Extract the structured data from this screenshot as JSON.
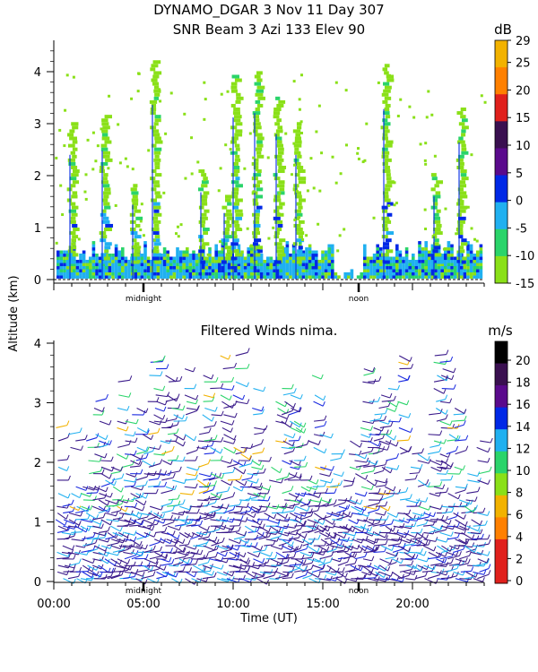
{
  "title_line1": "DYNAMO_DGAR    3 Nov 11 Day 307",
  "title_line2": "SNR Beam 3 Azi 133 Elev 90",
  "ylabel": "Altitude (km)",
  "xlabel": "Time (UT)",
  "chart_data": [
    {
      "type": "heatmap",
      "title": "SNR Beam 3 Azi 133 Elev 90",
      "ylabel": "Altitude (km)",
      "ylim": [
        0,
        4.5
      ],
      "yticks": [
        0,
        1,
        2,
        3,
        4
      ],
      "xlim": [
        0,
        24
      ],
      "x_annotations": [
        {
          "x": 5,
          "label": "midnight"
        },
        {
          "x": 17,
          "label": "noon"
        }
      ],
      "colorbar": {
        "unit": "dB",
        "ticks": [
          29,
          25,
          20,
          15,
          10,
          5,
          0,
          -5,
          -10,
          -15
        ],
        "colors": [
          "#f2b200",
          "#ff8000",
          "#e0201c",
          "#3a1050",
          "#5a0a8c",
          "#0028e6",
          "#20b0f0",
          "#2ad46a",
          "#8ae018"
        ]
      },
      "spikes": [
        {
          "x": 0.9,
          "top": 3.0
        },
        {
          "x": 2.7,
          "top": 3.1
        },
        {
          "x": 4.4,
          "top": 1.8
        },
        {
          "x": 5.5,
          "top": 4.2
        },
        {
          "x": 8.2,
          "top": 2.1
        },
        {
          "x": 9.5,
          "top": 1.6
        },
        {
          "x": 10.0,
          "top": 3.9
        },
        {
          "x": 11.2,
          "top": 4.0
        },
        {
          "x": 12.4,
          "top": 3.5
        },
        {
          "x": 13.5,
          "top": 3.0
        },
        {
          "x": 18.4,
          "top": 4.1
        },
        {
          "x": 21.2,
          "top": 2.0
        },
        {
          "x": 22.6,
          "top": 3.3
        }
      ]
    },
    {
      "type": "scatter",
      "title": "Filtered Winds nima.",
      "ylabel": "Altitude (km)",
      "xlabel": "Time (UT)",
      "ylim": [
        0,
        4.1
      ],
      "yticks": [
        0,
        1,
        2,
        3,
        4
      ],
      "xlim": [
        0,
        24
      ],
      "xticks": [
        "00:00",
        "05:00",
        "10:00",
        "15:00",
        "20:00"
      ],
      "xtick_values": [
        0,
        5,
        10,
        15,
        20
      ],
      "x_annotations": [
        {
          "x": 5,
          "label": "midnight"
        },
        {
          "x": 17,
          "label": "noon"
        }
      ],
      "colorbar": {
        "unit": "m/s",
        "ticks": [
          20,
          18,
          16,
          14,
          12,
          10,
          8,
          6,
          4,
          2,
          0
        ],
        "colors": [
          "#000000",
          "#3a1050",
          "#5a0a8c",
          "#0028e6",
          "#20b0f0",
          "#2ad46a",
          "#8ae018",
          "#f2b200",
          "#ff8000",
          "#e0201c",
          "#e0201c"
        ]
      },
      "wind_barb_colors": [
        "#3a1a8a",
        "#5a0a8c",
        "#1a2ae0",
        "#20b0f0",
        "#2ad46a",
        "#f2b200"
      ]
    }
  ]
}
